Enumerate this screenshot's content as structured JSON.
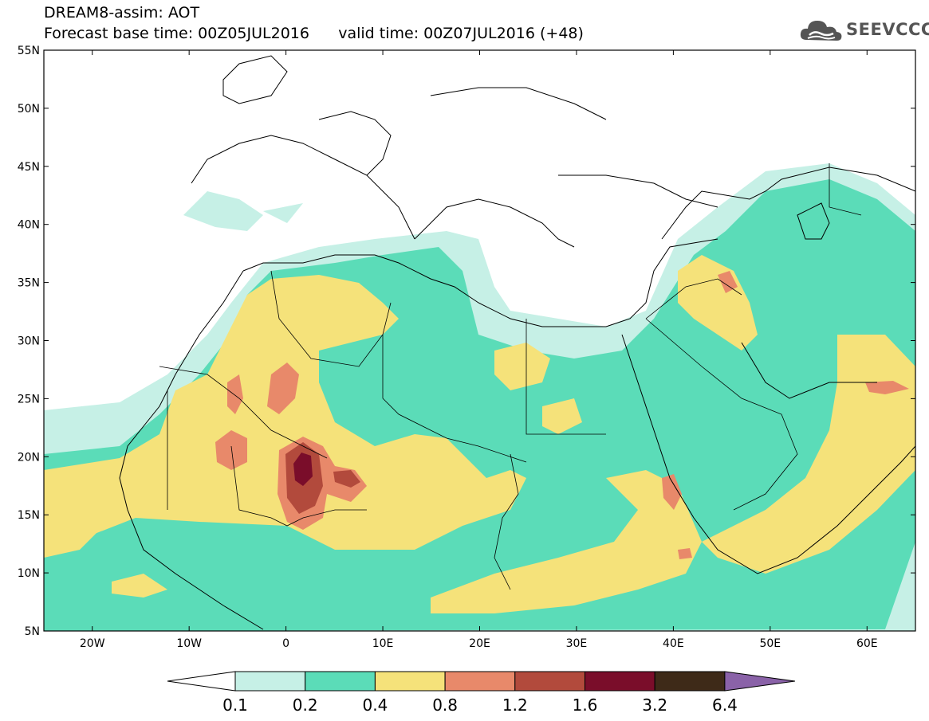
{
  "title": {
    "line1": "DREAM8-assim: AOT",
    "base_time": "Forecast base time: 00Z05JUL2016",
    "valid_time": "valid time: 00Z07JUL2016 (+48)"
  },
  "logo": {
    "text": "SEEVCCC",
    "icon": "cloud-icon",
    "color": "#555555"
  },
  "map": {
    "lon_range": [
      -25,
      65
    ],
    "lat_range": [
      5,
      55
    ],
    "lat_ticks": [
      {
        "value": 55,
        "label": "55N"
      },
      {
        "value": 50,
        "label": "50N"
      },
      {
        "value": 45,
        "label": "45N"
      },
      {
        "value": 40,
        "label": "40N"
      },
      {
        "value": 35,
        "label": "35N"
      },
      {
        "value": 30,
        "label": "30N"
      },
      {
        "value": 25,
        "label": "25N"
      },
      {
        "value": 20,
        "label": "20N"
      },
      {
        "value": 15,
        "label": "15N"
      },
      {
        "value": 10,
        "label": "10N"
      },
      {
        "value": 5,
        "label": "5N"
      }
    ],
    "lon_ticks": [
      {
        "value": -20,
        "label": "20W"
      },
      {
        "value": -10,
        "label": "10W"
      },
      {
        "value": 0,
        "label": "0"
      },
      {
        "value": 10,
        "label": "10E"
      },
      {
        "value": 20,
        "label": "20E"
      },
      {
        "value": 30,
        "label": "30E"
      },
      {
        "value": 40,
        "label": "40E"
      },
      {
        "value": 50,
        "label": "50E"
      },
      {
        "value": 60,
        "label": "60E"
      }
    ]
  },
  "colorbar": {
    "levels": [
      "0.1",
      "0.2",
      "0.4",
      "0.8",
      "1.2",
      "1.6",
      "3.2",
      "6.4"
    ],
    "colors": [
      "#c6f0e6",
      "#5bdcb8",
      "#f5e27a",
      "#e8896a",
      "#b24a3c",
      "#7a0d2a",
      "#3e2a18"
    ],
    "under_color": "#ffffff",
    "over_color": "#8a62a8"
  }
}
